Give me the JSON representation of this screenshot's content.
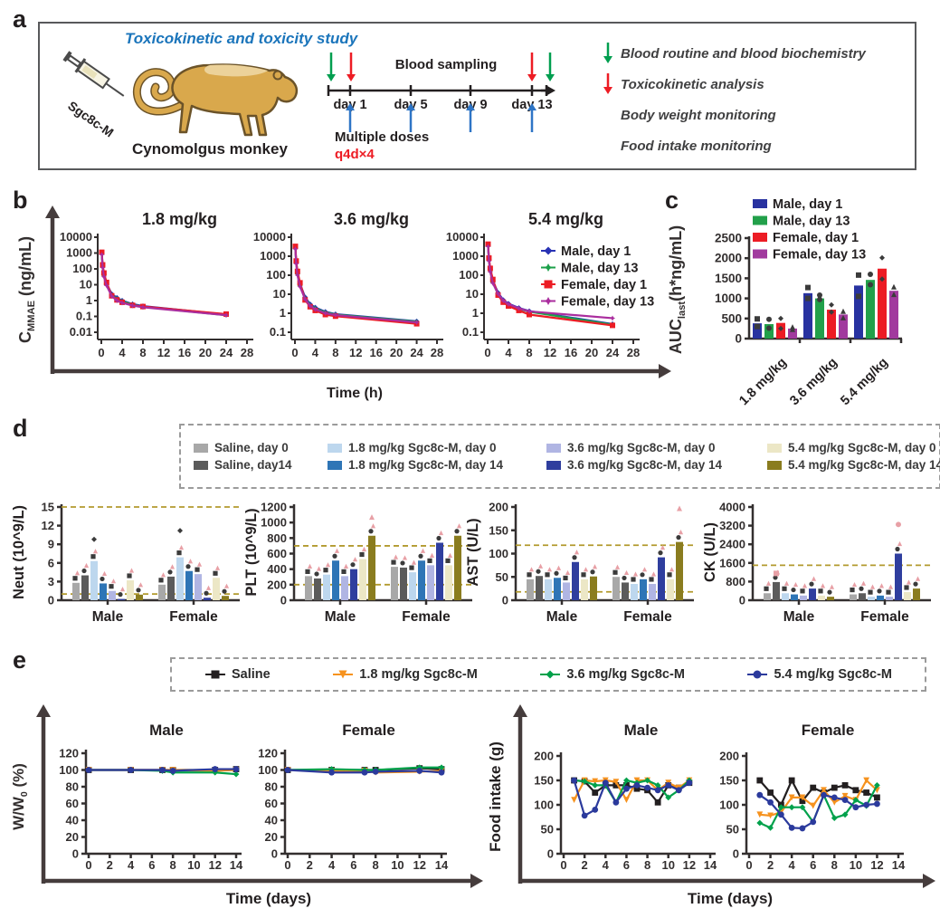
{
  "panels": {
    "a": "a",
    "b": "b",
    "c": "c",
    "d": "d",
    "e": "e"
  },
  "panel_a": {
    "title": "Toxicokinetic and toxicity study",
    "title_color": "#1b75bb",
    "syringe_label": "Sgc8c-M",
    "animal_label": "Cynomolgus monkey",
    "timeline": {
      "heading": "Blood sampling",
      "days": [
        "day 1",
        "day 5",
        "day 9",
        "day 13"
      ],
      "dose_label": "Multiple doses",
      "dose_regimen": "q4d×4"
    },
    "legend": [
      {
        "arrow": "#009e4f",
        "text": "Blood routine and blood biochemistry"
      },
      {
        "arrow": "#ed1c24",
        "text": "Toxicokinetic analysis"
      },
      {
        "arrow": "",
        "text": "Body weight monitoring"
      },
      {
        "arrow": "",
        "text": "Food intake monitoring"
      }
    ],
    "arrow_colors": {
      "sampling_green": "#009e4f",
      "tk_red": "#ed1c24",
      "dose_blue": "#2e75c6"
    }
  },
  "chart_data": [
    {
      "id": "pk_curves",
      "type": "line",
      "panel": "b",
      "xlabel": "Time (h)",
      "ylabel_parts": [
        {
          "t": "C"
        },
        {
          "t": "MMAE",
          "sub": true
        },
        {
          "t": " (ng/mL)"
        }
      ],
      "x_hours": [
        0.083,
        0.25,
        0.5,
        1,
        2,
        3,
        4,
        6,
        8,
        24
      ],
      "xticks": [
        0,
        4,
        8,
        12,
        16,
        20,
        24,
        28
      ],
      "xlim": [
        0,
        28
      ],
      "legend": [
        {
          "label": "Male, day 1",
          "color": "#2832b4",
          "marker": "diamond"
        },
        {
          "label": "Male, day 13",
          "color": "#1ca04a",
          "marker": "star"
        },
        {
          "label": "Female, day 1",
          "color": "#ec1c24",
          "marker": "square"
        },
        {
          "label": "Female, day 13",
          "color": "#aa2d9e",
          "marker": "star"
        }
      ],
      "subplots": [
        {
          "title": "1.8 mg/kg",
          "ytick_labels": [
            "10000",
            "1000",
            "100",
            "10",
            "1",
            "0.1",
            "0.01"
          ],
          "series": [
            [
              1000,
              160,
              45,
              12,
              2.6,
              1.5,
              1.0,
              0.6,
              0.45,
              0.13
            ],
            [
              880,
              140,
              38,
              10,
              2.2,
              1.3,
              0.9,
              0.55,
              0.4,
              0.12
            ],
            [
              1120,
              180,
              55,
              14,
              2.0,
              1.1,
              0.78,
              0.5,
              0.42,
              0.14
            ],
            [
              800,
              120,
              32,
              9,
              1.9,
              1.0,
              0.72,
              0.48,
              0.38,
              0.12
            ]
          ]
        },
        {
          "title": "3.6 mg/kg",
          "ytick_labels": [
            "10000",
            "1000",
            "100",
            "10",
            "1",
            "0.1"
          ],
          "series": [
            [
              2900,
              500,
              140,
              35,
              7,
              3.0,
              2.0,
              1.2,
              0.9,
              0.38
            ],
            [
              2500,
              430,
              115,
              28,
              6,
              2.6,
              1.8,
              1.1,
              0.85,
              0.36
            ],
            [
              3300,
              560,
              160,
              40,
              5,
              2.2,
              1.4,
              0.85,
              0.7,
              0.28
            ],
            [
              2400,
              400,
              100,
              25,
              5.5,
              2.4,
              1.6,
              1.0,
              0.8,
              0.33
            ]
          ]
        },
        {
          "title": "5.4 mg/kg",
          "ytick_labels": [
            "10000",
            "1000",
            "100",
            "10",
            "1",
            "0.1"
          ],
          "series": [
            [
              3900,
              700,
              200,
              50,
              12,
              5,
              3.2,
              1.9,
              1.3,
              0.27
            ],
            [
              3400,
              600,
              170,
              42,
              10,
              4.4,
              2.8,
              1.7,
              1.2,
              0.25
            ],
            [
              4300,
              800,
              230,
              60,
              9,
              3.8,
              2.4,
              1.4,
              0.85,
              0.23
            ],
            [
              3250,
              560,
              150,
              38,
              10.5,
              4.6,
              3.0,
              1.8,
              1.25,
              0.55
            ]
          ]
        }
      ]
    },
    {
      "id": "auc",
      "type": "bar",
      "panel": "c",
      "ylabel_parts": [
        {
          "t": "AUC"
        },
        {
          "t": "last",
          "sub": true
        },
        {
          "t": "(h*ng/mL)"
        }
      ],
      "ylim": [
        0,
        2500
      ],
      "yticks": [
        0,
        500,
        1000,
        1500,
        2000,
        2500
      ],
      "categories": [
        "1.8 mg/kg",
        "3.6 mg/kg",
        "5.4 mg/kg"
      ],
      "series": [
        {
          "name": "Male, day 1",
          "color": "#2832a0",
          "marker": "square",
          "values": [
            380,
            1130,
            1320
          ],
          "points": [
            [
              300,
              490
            ],
            [
              1000,
              1270
            ],
            [
              1050,
              1580
            ]
          ]
        },
        {
          "name": "Male, day 13",
          "color": "#22a04a",
          "marker": "circle",
          "values": [
            360,
            1000,
            1460
          ],
          "points": [
            [
              260,
              480
            ],
            [
              970,
              1080
            ],
            [
              1340,
              1600
            ]
          ]
        },
        {
          "name": "Female, day 1",
          "color": "#ec1c24",
          "marker": "diamond",
          "values": [
            390,
            720,
            1740
          ],
          "points": [
            [
              250,
              500
            ],
            [
              660,
              840
            ],
            [
              1480,
              2010
            ]
          ]
        },
        {
          "name": "Female, day 13",
          "color": "#a13a9e",
          "marker": "triangle",
          "values": [
            250,
            600,
            1190
          ],
          "points": [
            [
              230,
              290
            ],
            [
              520,
              680
            ],
            [
              1100,
              1290
            ]
          ]
        }
      ]
    },
    {
      "id": "blood_panels",
      "type": "bar-group",
      "panel": "d",
      "groups": [
        "Male",
        "Female"
      ],
      "bar_colors": [
        "#a8a8a8",
        "#5b5b5b",
        "#bdd7ee",
        "#2e75b6",
        "#b0b5e3",
        "#2f3e9e",
        "#ece7c6",
        "#8a7c1f"
      ],
      "legend_rows": [
        [
          {
            "label": "Saline, day 0",
            "color": "#a8a8a8"
          },
          {
            "label": "1.8 mg/kg Sgc8c-M, day 0",
            "color": "#bdd7ee"
          },
          {
            "label": "3.6 mg/kg Sgc8c-M, day 0",
            "color": "#b0b5e3"
          },
          {
            "label": "5.4 mg/kg Sgc8c-M, day 0",
            "color": "#ece7c6"
          }
        ],
        [
          {
            "label": "Saline, day14",
            "color": "#5b5b5b"
          },
          {
            "label": "1.8 mg/kg Sgc8c-M, day 14",
            "color": "#2e75b6"
          },
          {
            "label": "3.6 mg/kg Sgc8c-M, day 14",
            "color": "#2f3e9e"
          },
          {
            "label": "5.4 mg/kg Sgc8c-M, day 14",
            "color": "#8a7c1f"
          }
        ]
      ],
      "charts": [
        {
          "ylabel": "Neut (10^9/L)",
          "ylim": [
            0,
            15
          ],
          "yticks": [
            0,
            3,
            6,
            9,
            12,
            15
          ],
          "ref_lines": [
            15,
            1
          ],
          "male": [
            2.8,
            4.0,
            6.3,
            2.7,
            1.5,
            0.2,
            3.2,
            0.9
          ],
          "female": [
            2.5,
            3.8,
            6.9,
            4.7,
            4.2,
            0.4,
            3.6,
            0.7
          ],
          "outliers": [
            {
              "group": 0,
              "bar": 2,
              "value": 9.8,
              "color": "#3b3b3b",
              "marker": "diamond"
            },
            {
              "group": 1,
              "bar": 2,
              "value": 11.2,
              "color": "#3b3b3b",
              "marker": "diamond"
            }
          ]
        },
        {
          "ylabel": "PLT (10^9/L)",
          "ylim": [
            0,
            1200
          ],
          "yticks": [
            0,
            200,
            400,
            600,
            800,
            1000,
            1200
          ],
          "ref_lines": [
            700,
            200
          ],
          "male": [
            310,
            280,
            330,
            510,
            310,
            400,
            530,
            830
          ],
          "female": [
            430,
            420,
            360,
            510,
            450,
            740,
            450,
            830
          ],
          "outliers": [
            {
              "group": 0,
              "bar": 7,
              "value": 1070,
              "color": "#e8a0a6",
              "marker": "triangle"
            }
          ]
        },
        {
          "ylabel": "AST (U/L)",
          "ylim": [
            0,
            200
          ],
          "yticks": [
            0,
            50,
            100,
            150,
            200
          ],
          "ref_lines": [
            118,
            18
          ],
          "male": [
            45,
            52,
            45,
            48,
            38,
            82,
            45,
            51
          ],
          "female": [
            50,
            38,
            35,
            45,
            35,
            92,
            45,
            125
          ],
          "outliers": [
            {
              "group": 1,
              "bar": 7,
              "value": 197,
              "color": "#e8a0a6",
              "marker": "triangle"
            }
          ]
        },
        {
          "ylabel": "CK (U/L)",
          "ylim": [
            0,
            4000
          ],
          "yticks": [
            0,
            800,
            1600,
            2400,
            3200,
            4000
          ],
          "ref_lines": [
            1500
          ],
          "male": [
            300,
            780,
            300,
            250,
            200,
            500,
            200,
            150
          ],
          "female": [
            250,
            300,
            150,
            200,
            150,
            2000,
            350,
            500
          ],
          "outliers": [
            {
              "group": 0,
              "bar": 1,
              "value": 1150,
              "color": "#e8a0a6",
              "marker": "square"
            },
            {
              "group": 1,
              "bar": 5,
              "value": 3250,
              "color": "#e8a0a6",
              "marker": "circle"
            }
          ]
        }
      ]
    },
    {
      "id": "tolerability",
      "type": "line",
      "panel": "e",
      "legend": [
        {
          "label": "Saline",
          "color": "#231f20",
          "marker": "square"
        },
        {
          "label": "1.8 mg/kg Sgc8c-M",
          "color": "#f6921e",
          "marker": "tridown"
        },
        {
          "label": "3.6 mg/kg Sgc8c-M",
          "color": "#00a14b",
          "marker": "diamond"
        },
        {
          "label": "5.4 mg/kg Sgc8c-M",
          "color": "#2b3a9c",
          "marker": "circle"
        }
      ],
      "weight": {
        "ylabel_parts": [
          {
            "t": "W/W"
          },
          {
            "t": "0",
            "sub": true
          },
          {
            "t": " (%)"
          }
        ],
        "xlabel": "Time (days)",
        "ylim": [
          0,
          120
        ],
        "yticks": [
          0,
          20,
          40,
          60,
          80,
          100,
          120
        ],
        "xticks": [
          0,
          2,
          4,
          6,
          8,
          10,
          12,
          14
        ],
        "x": [
          0,
          4,
          7,
          8,
          12,
          14
        ],
        "subplots": [
          {
            "title": "Male",
            "series": [
              [
                100,
                100,
                100,
                100,
                100,
                101
              ],
              [
                100,
                100,
                100,
                100,
                99,
                100
              ],
              [
                100,
                100,
                99,
                97,
                97,
                95
              ],
              [
                100,
                100,
                100,
                99,
                101,
                101
              ]
            ]
          },
          {
            "title": "Female",
            "series": [
              [
                100,
                100,
                100,
                100,
                102,
                101
              ],
              [
                100,
                99,
                99,
                97,
                98,
                99
              ],
              [
                100,
                101,
                100,
                100,
                103,
                103
              ],
              [
                100,
                97,
                97,
                98,
                99,
                97
              ]
            ]
          }
        ]
      },
      "food": {
        "ylabel": "Food intake (g)",
        "xlabel": "Time (days)",
        "ylim": [
          0,
          200
        ],
        "yticks": [
          0,
          50,
          100,
          150,
          200
        ],
        "xticks": [
          0,
          2,
          4,
          6,
          8,
          10,
          12,
          14
        ],
        "x": [
          1,
          2,
          3,
          4,
          5,
          6,
          7,
          8,
          9,
          10,
          11,
          12
        ],
        "subplots": [
          {
            "title": "Male",
            "series": [
              [
                150,
                148,
                125,
                140,
                140,
                140,
                133,
                130,
                105,
                140,
                135,
                145
              ],
              [
                110,
                150,
                148,
                150,
                147,
                110,
                150,
                150,
                130,
                145,
                135,
                150
              ],
              [
                150,
                148,
                140,
                140,
                105,
                150,
                145,
                150,
                140,
                115,
                130,
                150
              ],
              [
                150,
                78,
                90,
                145,
                105,
                133,
                140,
                135,
                130,
                140,
                130,
                145
              ]
            ]
          },
          {
            "title": "Female",
            "series": [
              [
                150,
                125,
                100,
                150,
                108,
                135,
                125,
                135,
                140,
                130,
                125,
                115
              ],
              [
                80,
                78,
                85,
                115,
                115,
                98,
                130,
                105,
                118,
                110,
                150,
                130
              ],
              [
                63,
                53,
                95,
                95,
                95,
                65,
                120,
                73,
                80,
                110,
                98,
                140
              ],
              [
                120,
                105,
                80,
                53,
                52,
                65,
                120,
                115,
                110,
                95,
                100,
                102
              ]
            ]
          }
        ]
      }
    }
  ]
}
